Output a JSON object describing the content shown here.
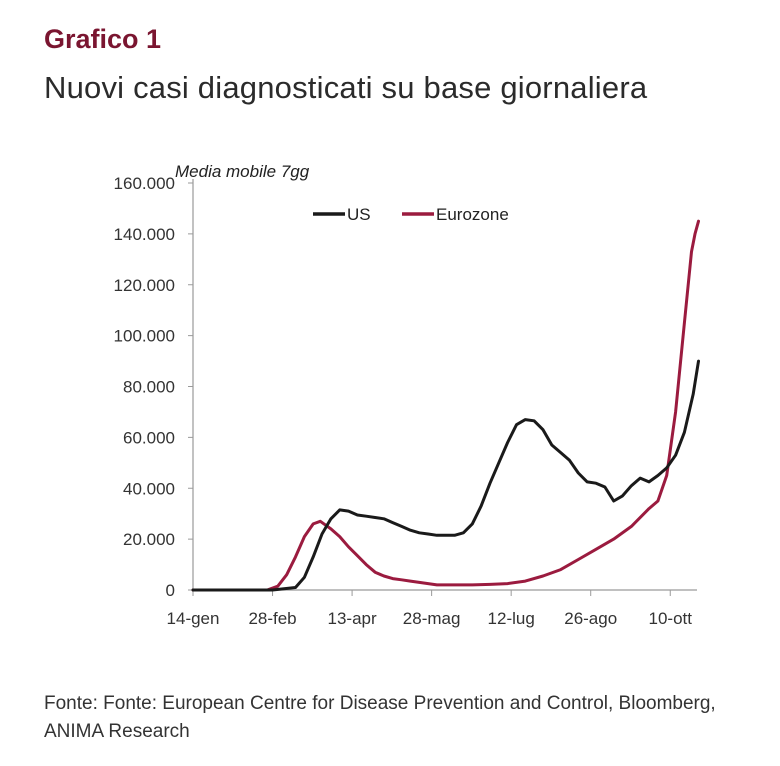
{
  "header": {
    "label": "Grafico 1",
    "title": "Nuovi casi diagnosticati su base giornaliera"
  },
  "footer": {
    "source": "Fonte: Fonte: European Centre for Disease Prevention and Control, Bloomberg, ANIMA Research"
  },
  "chart_data": {
    "type": "line",
    "title": "",
    "annotation": "Media mobile 7gg",
    "xlabel": "",
    "ylabel": "",
    "x_tick_labels": [
      "14-gen",
      "28-feb",
      "13-apr",
      "28-mag",
      "12-lug",
      "26-ago",
      "10-ott"
    ],
    "x_range": [
      "14-gen",
      "24-ott"
    ],
    "y_tick_labels": [
      "0",
      "20.000",
      "40.000",
      "60.000",
      "80.000",
      "100.000",
      "120.000",
      "140.000",
      "160.000"
    ],
    "ylim": [
      0,
      160000
    ],
    "grid": false,
    "legend_position": "top-center",
    "colors": {
      "US": "#1a1a1a",
      "Eurozone": "#9b1b3f"
    },
    "series": [
      {
        "name": "US",
        "points": [
          [
            "14-gen",
            0
          ],
          [
            "28-feb",
            0
          ],
          [
            "12-mar",
            1000
          ],
          [
            "17-mar",
            5000
          ],
          [
            "22-mar",
            13000
          ],
          [
            "27-mar",
            22000
          ],
          [
            "01-apr",
            28000
          ],
          [
            "06-apr",
            31500
          ],
          [
            "11-apr",
            31000
          ],
          [
            "16-apr",
            29500
          ],
          [
            "21-apr",
            29000
          ],
          [
            "26-apr",
            28500
          ],
          [
            "01-mag",
            28000
          ],
          [
            "06-mag",
            26500
          ],
          [
            "11-mag",
            25000
          ],
          [
            "16-mag",
            23500
          ],
          [
            "21-mag",
            22500
          ],
          [
            "26-mag",
            22000
          ],
          [
            "31-mag",
            21500
          ],
          [
            "05-giu",
            21500
          ],
          [
            "10-giu",
            21500
          ],
          [
            "15-giu",
            22500
          ],
          [
            "20-giu",
            26000
          ],
          [
            "25-giu",
            33000
          ],
          [
            "30-giu",
            42000
          ],
          [
            "05-lug",
            50000
          ],
          [
            "10-lug",
            58000
          ],
          [
            "15-lug",
            65000
          ],
          [
            "20-lug",
            67000
          ],
          [
            "25-lug",
            66500
          ],
          [
            "30-lug",
            63000
          ],
          [
            "04-ago",
            57000
          ],
          [
            "09-ago",
            54000
          ],
          [
            "14-ago",
            51000
          ],
          [
            "19-ago",
            46000
          ],
          [
            "24-ago",
            42500
          ],
          [
            "29-ago",
            42000
          ],
          [
            "03-set",
            40500
          ],
          [
            "08-set",
            35000
          ],
          [
            "13-set",
            37000
          ],
          [
            "18-set",
            41000
          ],
          [
            "23-set",
            44000
          ],
          [
            "28-set",
            42500
          ],
          [
            "03-ott",
            45000
          ],
          [
            "08-ott",
            48000
          ],
          [
            "13-ott",
            53000
          ],
          [
            "18-ott",
            62000
          ],
          [
            "23-ott",
            77000
          ],
          [
            "26-ott",
            90000
          ]
        ]
      },
      {
        "name": "Eurozone",
        "points": [
          [
            "14-gen",
            0
          ],
          [
            "25-feb",
            0
          ],
          [
            "02-mar",
            1500
          ],
          [
            "07-mar",
            6000
          ],
          [
            "12-mar",
            13000
          ],
          [
            "17-mar",
            21000
          ],
          [
            "22-mar",
            26000
          ],
          [
            "26-mar",
            27000
          ],
          [
            "01-apr",
            24000
          ],
          [
            "06-apr",
            21000
          ],
          [
            "11-apr",
            17000
          ],
          [
            "16-apr",
            13500
          ],
          [
            "21-apr",
            10000
          ],
          [
            "26-apr",
            7000
          ],
          [
            "01-mag",
            5500
          ],
          [
            "06-mag",
            4500
          ],
          [
            "11-mag",
            4000
          ],
          [
            "16-mag",
            3500
          ],
          [
            "21-mag",
            3000
          ],
          [
            "26-mag",
            2500
          ],
          [
            "31-mag",
            2000
          ],
          [
            "10-giu",
            2000
          ],
          [
            "20-giu",
            2000
          ],
          [
            "30-giu",
            2200
          ],
          [
            "10-lug",
            2500
          ],
          [
            "20-lug",
            3500
          ],
          [
            "30-lug",
            5500
          ],
          [
            "09-ago",
            8000
          ],
          [
            "19-ago",
            12000
          ],
          [
            "29-ago",
            16000
          ],
          [
            "08-set",
            20000
          ],
          [
            "18-set",
            25000
          ],
          [
            "28-set",
            32000
          ],
          [
            "03-ott",
            35000
          ],
          [
            "08-ott",
            45000
          ],
          [
            "13-ott",
            70000
          ],
          [
            "18-ott",
            105000
          ],
          [
            "22-ott",
            133000
          ],
          [
            "24-ott",
            140000
          ],
          [
            "26-ott",
            145000
          ]
        ]
      }
    ]
  }
}
